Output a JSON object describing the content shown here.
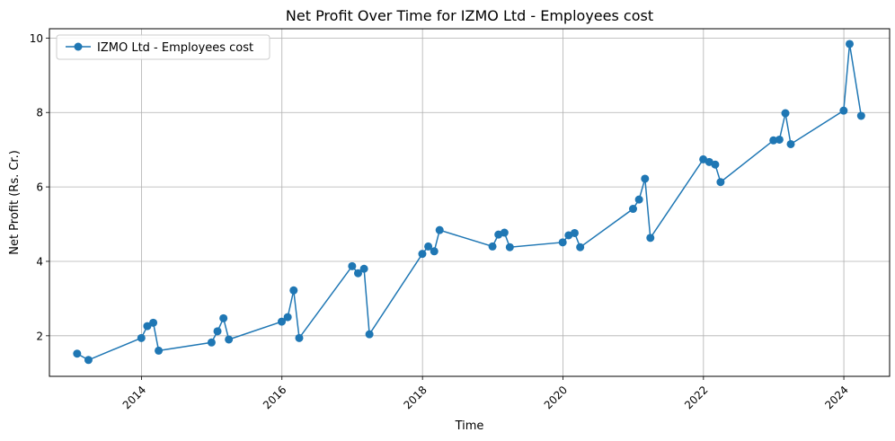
{
  "chart_data": {
    "type": "line",
    "title": "Net Profit Over Time for IZMO Ltd - Employees cost",
    "xlabel": "Time",
    "ylabel": "Net Profit (Rs. Cr.)",
    "xlim": [
      "2012-09-09",
      "2024-08-26"
    ],
    "ylim": [
      0.91,
      10.25
    ],
    "xticks": [
      "2014-01-01",
      "2016-01-01",
      "2018-01-01",
      "2020-01-01",
      "2022-01-01",
      "2024-01-01"
    ],
    "xtick_labels": [
      "2014",
      "2016",
      "2018",
      "2020",
      "2022",
      "2024"
    ],
    "yticks": [
      2,
      4,
      6,
      8,
      10
    ],
    "ytick_labels": [
      "2",
      "4",
      "6",
      "8",
      "10"
    ],
    "grid": true,
    "legend_position": "upper-left",
    "colors": {
      "series": "#1f77b4",
      "grid": "#b0b0b0"
    },
    "series": [
      {
        "name": "IZMO Ltd - Employees cost",
        "x": [
          "2013-01-31",
          "2013-03-31",
          "2013-12-31",
          "2014-01-31",
          "2014-03-03",
          "2014-03-31",
          "2014-12-31",
          "2015-01-31",
          "2015-03-03",
          "2015-03-31",
          "2015-12-31",
          "2016-01-31",
          "2016-03-02",
          "2016-03-31",
          "2016-12-31",
          "2017-01-31",
          "2017-03-03",
          "2017-03-31",
          "2017-12-31",
          "2018-01-31",
          "2018-03-03",
          "2018-03-31",
          "2018-12-31",
          "2019-01-31",
          "2019-03-03",
          "2019-03-31",
          "2019-12-31",
          "2020-01-31",
          "2020-03-02",
          "2020-03-31",
          "2020-12-31",
          "2021-01-31",
          "2021-03-03",
          "2021-03-31",
          "2021-12-31",
          "2022-01-31",
          "2022-03-03",
          "2022-03-31",
          "2022-12-31",
          "2023-01-31",
          "2023-03-03",
          "2023-03-31",
          "2023-12-31",
          "2024-01-31",
          "2024-03-31"
        ],
        "y": [
          1.52,
          1.35,
          1.94,
          2.26,
          2.35,
          1.6,
          1.82,
          2.12,
          2.47,
          1.9,
          2.38,
          2.5,
          3.22,
          1.94,
          3.87,
          3.68,
          3.8,
          2.04,
          4.2,
          4.4,
          4.27,
          4.84,
          4.4,
          4.72,
          4.77,
          4.38,
          4.51,
          4.7,
          4.76,
          4.38,
          5.41,
          5.66,
          6.22,
          4.63,
          6.74,
          6.67,
          6.6,
          6.13,
          7.25,
          7.27,
          7.98,
          7.15,
          8.05,
          9.84,
          7.91
        ]
      }
    ]
  }
}
